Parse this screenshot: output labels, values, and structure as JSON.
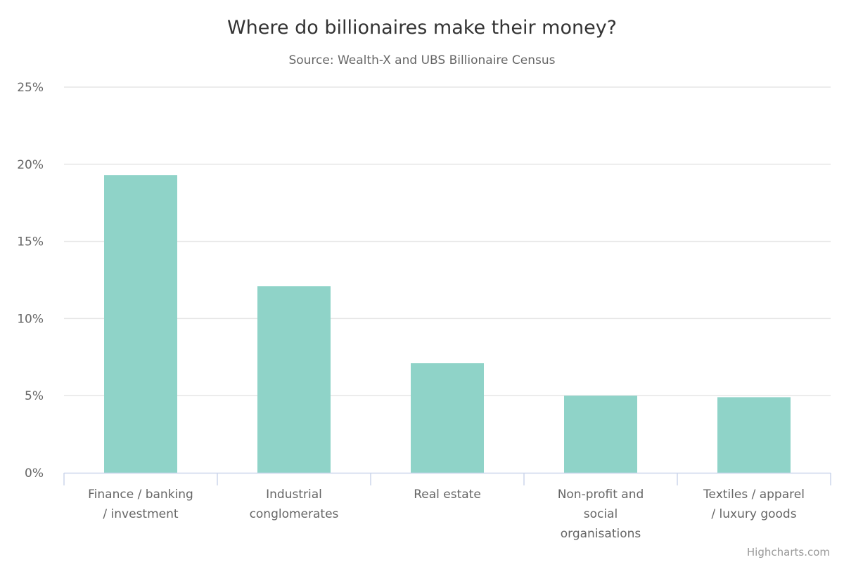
{
  "chart_data": {
    "type": "bar",
    "title": "Where do billionaires make their money?",
    "subtitle": "Source: Wealth-X and UBS Billionaire Census",
    "categories": [
      [
        "Finance / banking",
        "/ investment"
      ],
      [
        "Industrial",
        "conglomerates"
      ],
      [
        "Real estate"
      ],
      [
        "Non-profit and",
        "social",
        "organisations"
      ],
      [
        "Textiles / apparel",
        "/ luxury goods"
      ]
    ],
    "values": [
      19.3,
      12.1,
      7.1,
      5.0,
      4.9
    ],
    "ylim": [
      0,
      25
    ],
    "yticks": [
      0,
      5,
      10,
      15,
      20,
      25
    ],
    "ytick_suffix": "%",
    "xlabel": "",
    "ylabel": "",
    "grid": true,
    "legend": "none",
    "bar_color": "#8fd3c8",
    "credit": "Highcharts.com"
  }
}
